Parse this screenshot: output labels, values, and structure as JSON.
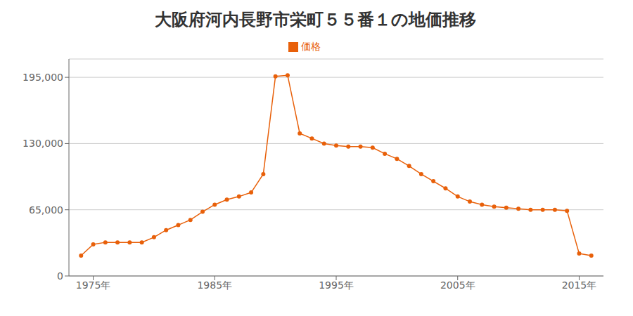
{
  "chart_data": {
    "type": "line",
    "title": "大阪府河内長野市栄町５５番１の地価推移",
    "x": [
      1974,
      1975,
      1976,
      1977,
      1978,
      1979,
      1980,
      1981,
      1982,
      1983,
      1984,
      1985,
      1986,
      1987,
      1988,
      1989,
      1990,
      1991,
      1992,
      1993,
      1994,
      1995,
      1996,
      1997,
      1998,
      1999,
      2000,
      2001,
      2002,
      2003,
      2004,
      2005,
      2006,
      2007,
      2008,
      2009,
      2010,
      2011,
      2012,
      2013,
      2014,
      2015,
      2016
    ],
    "series": [
      {
        "name": "価格",
        "color": "#E8600A",
        "marker": "o",
        "values": [
          20000,
          31000,
          33000,
          33000,
          33000,
          33000,
          38000,
          45000,
          50000,
          55000,
          63000,
          70000,
          75000,
          78000,
          82000,
          100000,
          196000,
          197000,
          140000,
          135000,
          130000,
          128000,
          127000,
          127000,
          126000,
          120000,
          115000,
          108000,
          100000,
          93000,
          86000,
          78000,
          73000,
          70000,
          68000,
          67000,
          66000,
          65000,
          65000,
          65000,
          64000,
          22000,
          20000
        ]
      }
    ],
    "xlim": [
      1973,
      2017
    ],
    "xticks": [
      {
        "value": 1975,
        "label": "1975年"
      },
      {
        "value": 1985,
        "label": "1985年"
      },
      {
        "value": 1995,
        "label": "1995年"
      },
      {
        "value": 2005,
        "label": "2005年"
      },
      {
        "value": 2015,
        "label": "2015年"
      }
    ],
    "ylim": [
      0,
      213000
    ],
    "yticks": [
      0,
      {
        "value": 65000,
        "label": "65,000"
      },
      {
        "value": 130000,
        "label": "130,000"
      },
      {
        "value": 195000,
        "label": "195,000"
      }
    ],
    "grid": true,
    "legend": "top"
  }
}
